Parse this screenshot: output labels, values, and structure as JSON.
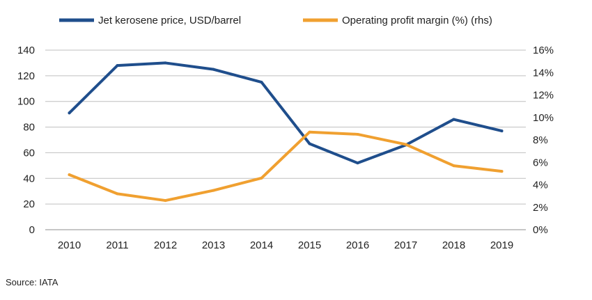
{
  "chart_data": {
    "type": "line",
    "categories": [
      "2010",
      "2011",
      "2012",
      "2013",
      "2014",
      "2015",
      "2016",
      "2017",
      "2018",
      "2019"
    ],
    "series": [
      {
        "name": "Jet kerosene price, USD/barrel",
        "axis": "left",
        "color": "#1f4e8c",
        "values": [
          91,
          128,
          130,
          125,
          115,
          67,
          52,
          66,
          86,
          77
        ]
      },
      {
        "name": "Operating profit margin (%) (rhs)",
        "axis": "right",
        "color": "#f0a030",
        "values": [
          4.9,
          3.2,
          2.6,
          3.5,
          4.6,
          8.7,
          8.5,
          7.6,
          5.7,
          5.2
        ]
      }
    ],
    "yleft": {
      "lim": [
        0,
        140
      ],
      "ticks": [
        "0",
        "20",
        "40",
        "60",
        "80",
        "100",
        "120",
        "140"
      ]
    },
    "yright": {
      "lim": [
        0,
        16
      ],
      "ticks": [
        "0%",
        "2%",
        "4%",
        "6%",
        "8%",
        "10%",
        "12%",
        "14%",
        "16%"
      ]
    },
    "grid": true,
    "legend_position": "top"
  },
  "source": "Source: IATA"
}
